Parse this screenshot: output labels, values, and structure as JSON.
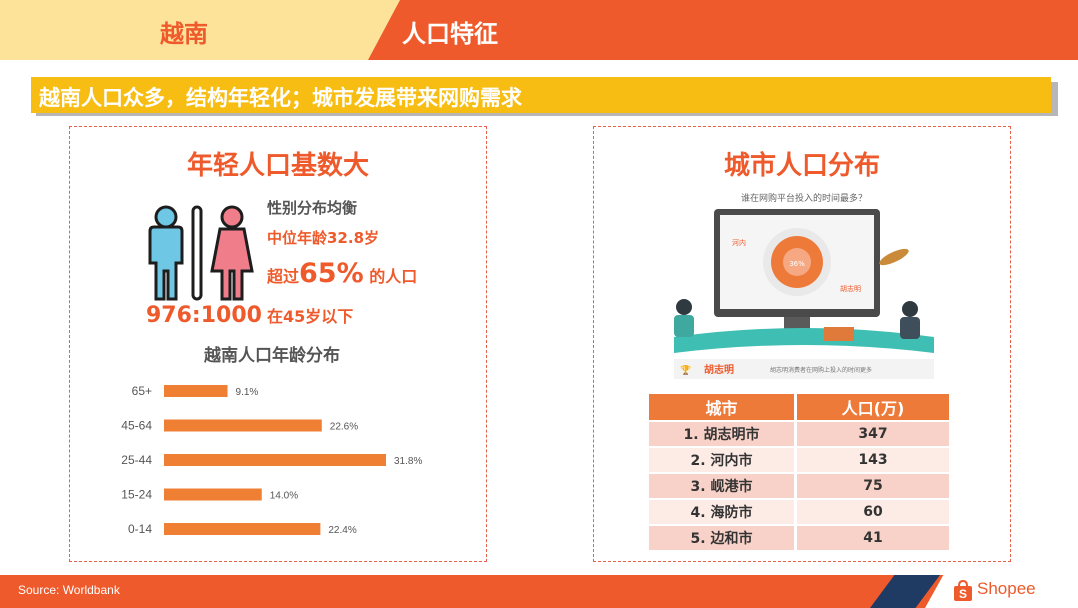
{
  "header": {
    "country": "越南",
    "section_title": "人口特征"
  },
  "banner": {
    "text": "越南人口众多，结构年轻化；城市发展带来网购需求"
  },
  "left_panel": {
    "title": "年轻人口基数大",
    "gender_ratio": "976:1000",
    "stats": {
      "gender_balance": "性别分布均衡",
      "median_age": "中位年龄32.8岁",
      "over_prefix": "超过",
      "over_value": "65%",
      "over_suffix": " 的人口",
      "under_45": "在45岁以下"
    },
    "age_chart_title": "越南人口年龄分布"
  },
  "chart_data": {
    "type": "bar",
    "orientation": "horizontal",
    "categories": [
      "65+",
      "45-64",
      "25-44",
      "15-24",
      "0-14"
    ],
    "values": [
      9.1,
      22.6,
      31.8,
      14.0,
      22.4
    ],
    "value_labels": [
      "9.1%",
      "22.6%",
      "31.8%",
      "14.0%",
      "22.4%"
    ],
    "title": "越南人口年龄分布",
    "color": "#ee7f33"
  },
  "right_panel": {
    "title": "城市人口分布",
    "illustration": {
      "question": "谁在网购平台投入的时间最多？",
      "pie_label_hanoi": "河内",
      "pie_center_value": "36%",
      "pie_label_hcm": "胡志明",
      "caption_city": "胡志明",
      "caption_text": "胡志明消费者在网购上投入的时间更多"
    },
    "table": {
      "headers": [
        "城市",
        "人口(万)"
      ],
      "rows": [
        [
          "1. 胡志明市",
          "347"
        ],
        [
          "2. 河内市",
          "143"
        ],
        [
          "3. 岘港市",
          "75"
        ],
        [
          "4. 海防市",
          "60"
        ],
        [
          "5. 边和市",
          "41"
        ]
      ]
    }
  },
  "footer": {
    "source": "Source: Worldbank",
    "logo_text": "Shopee"
  },
  "colors": {
    "brand_orange": "#ee5a2b",
    "banner_yellow": "#f7bd12",
    "header_cream": "#fde29a",
    "navy": "#1f3a63"
  }
}
